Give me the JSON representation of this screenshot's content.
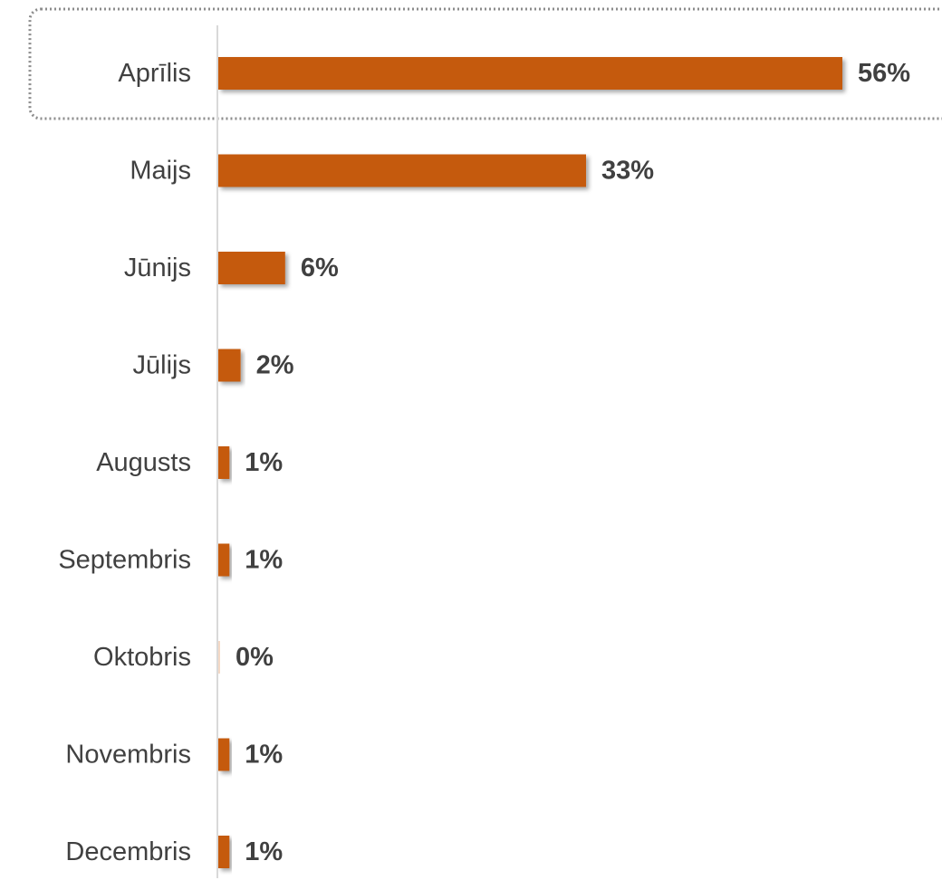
{
  "chart_data": {
    "type": "bar",
    "orientation": "horizontal",
    "categories": [
      "Aprīlis",
      "Maijs",
      "Jūnijs",
      "Jūlijs",
      "Augusts",
      "Septembris",
      "Oktobris",
      "Novembris",
      "Decembris"
    ],
    "values": [
      56,
      33,
      6,
      2,
      1,
      1,
      0,
      1,
      1
    ],
    "value_labels": [
      "56%",
      "33%",
      "6%",
      "2%",
      "1%",
      "1%",
      "0%",
      "1%",
      "1%"
    ],
    "unit": "%",
    "highlighted_category": "Aprīlis",
    "title": "",
    "xlabel": "",
    "ylabel": "",
    "xlim": [
      0,
      56
    ],
    "grid": false,
    "legend": "none",
    "colors": {
      "bar": "#C55A11",
      "axis": "#D9D9D9",
      "highlight_border": "#8C8C8C",
      "text": "#404040"
    }
  }
}
